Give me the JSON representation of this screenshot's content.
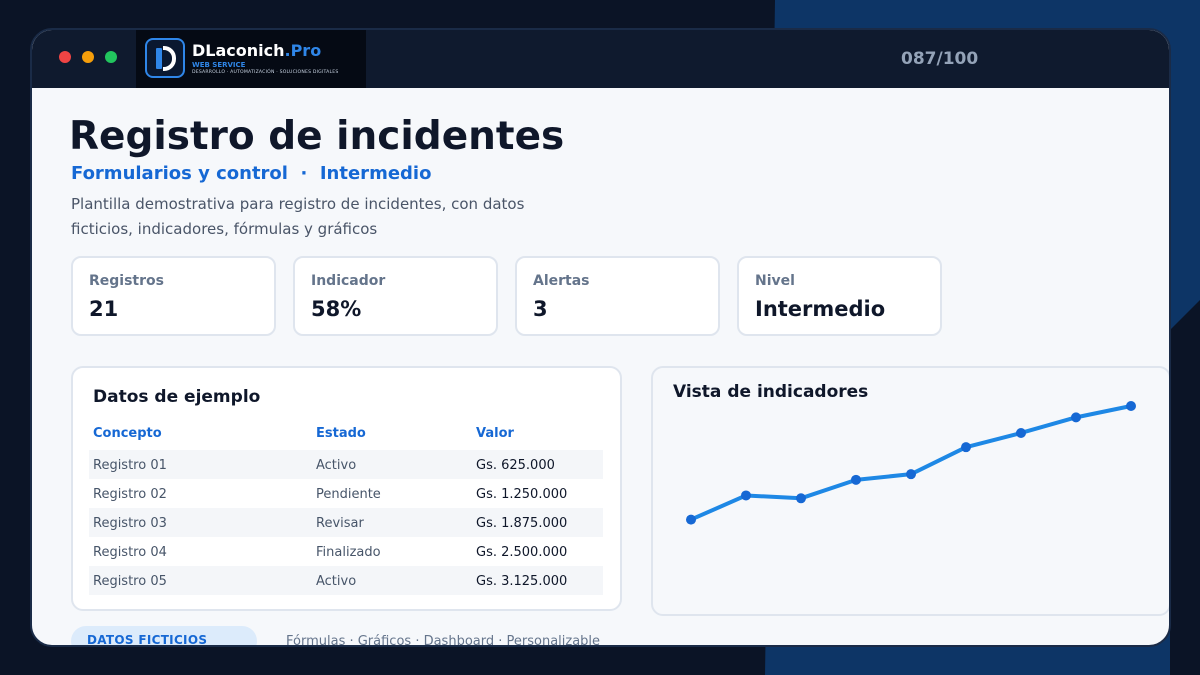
{
  "window": {
    "logo": {
      "name_main": "DLaconich",
      "name_accent": ".Pro",
      "subtitle": "WEB SERVICE",
      "tagline": "DESARROLLO · AUTOMATIZACIÓN · SOLUCIONES DIGITALES"
    },
    "counter": "087/100"
  },
  "header": {
    "title": "Registro de incidentes",
    "subtitle": "Formularios y control  ·  Intermedio",
    "description": "Plantilla demostrativa para registro de incidentes, con datos ficticios, indicadores, fórmulas y gráficos"
  },
  "kpis": [
    {
      "label": "Registros",
      "value": "21"
    },
    {
      "label": "Indicador",
      "value": "58%"
    },
    {
      "label": "Alertas",
      "value": "3"
    },
    {
      "label": "Nivel",
      "value": "Intermedio"
    }
  ],
  "table": {
    "title": "Datos de ejemplo",
    "columns": [
      "Concepto",
      "Estado",
      "Valor"
    ],
    "rows": [
      [
        "Registro 01",
        "Activo",
        "Gs. 625.000"
      ],
      [
        "Registro 02",
        "Pendiente",
        "Gs. 1.250.000"
      ],
      [
        "Registro 03",
        "Revisar",
        "Gs. 1.875.000"
      ],
      [
        "Registro 04",
        "Finalizado",
        "Gs. 2.500.000"
      ],
      [
        "Registro 05",
        "Activo",
        "Gs. 3.125.000"
      ]
    ]
  },
  "chart": {
    "title": "Vista de indicadores",
    "line_color": "#1e88e5",
    "point_color": "#1668d4"
  },
  "chart_data": {
    "type": "line",
    "title": "Vista de indicadores",
    "x": [
      1,
      2,
      3,
      4,
      5,
      6,
      7,
      8,
      9
    ],
    "series": [
      {
        "values": [
          20,
          37,
          35,
          48,
          52,
          71,
          81,
          92,
          100
        ]
      }
    ],
    "ylim": [
      0,
      100
    ],
    "grid": false,
    "legend": "none"
  },
  "footer": {
    "badge": "DATOS FICTICIOS",
    "features": "Fórmulas · Gráficos · Dashboard · Personalizable"
  }
}
